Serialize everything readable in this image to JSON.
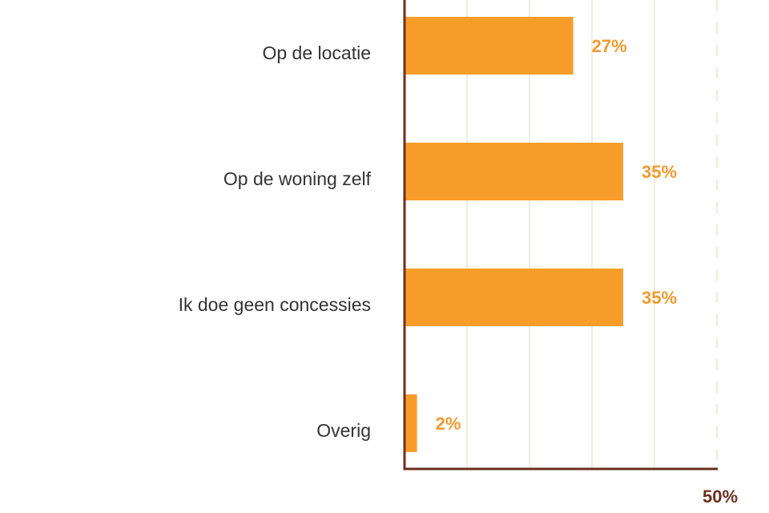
{
  "chart_data": {
    "type": "bar",
    "orientation": "horizontal",
    "categories": [
      "Op de locatie",
      "Op de woning zelf",
      "Ik doe geen concessies",
      "Overig"
    ],
    "values": [
      27,
      35,
      35,
      2
    ],
    "value_labels": [
      "27%",
      "35%",
      "35%",
      "2%"
    ],
    "title": "",
    "xlabel": "",
    "ylabel": "",
    "xlim": [
      0,
      50
    ],
    "x_tick_labels": [
      {
        "value": 50,
        "label": "50%"
      }
    ],
    "grid": true,
    "legend": "none"
  },
  "colors": {
    "bar": "#f99d2a",
    "value_label": "#f29a2e",
    "axis": "#6b2f1e",
    "grid": "#f4ecd9",
    "category_label": "#333333",
    "tick_label": "#6b2f1e"
  }
}
